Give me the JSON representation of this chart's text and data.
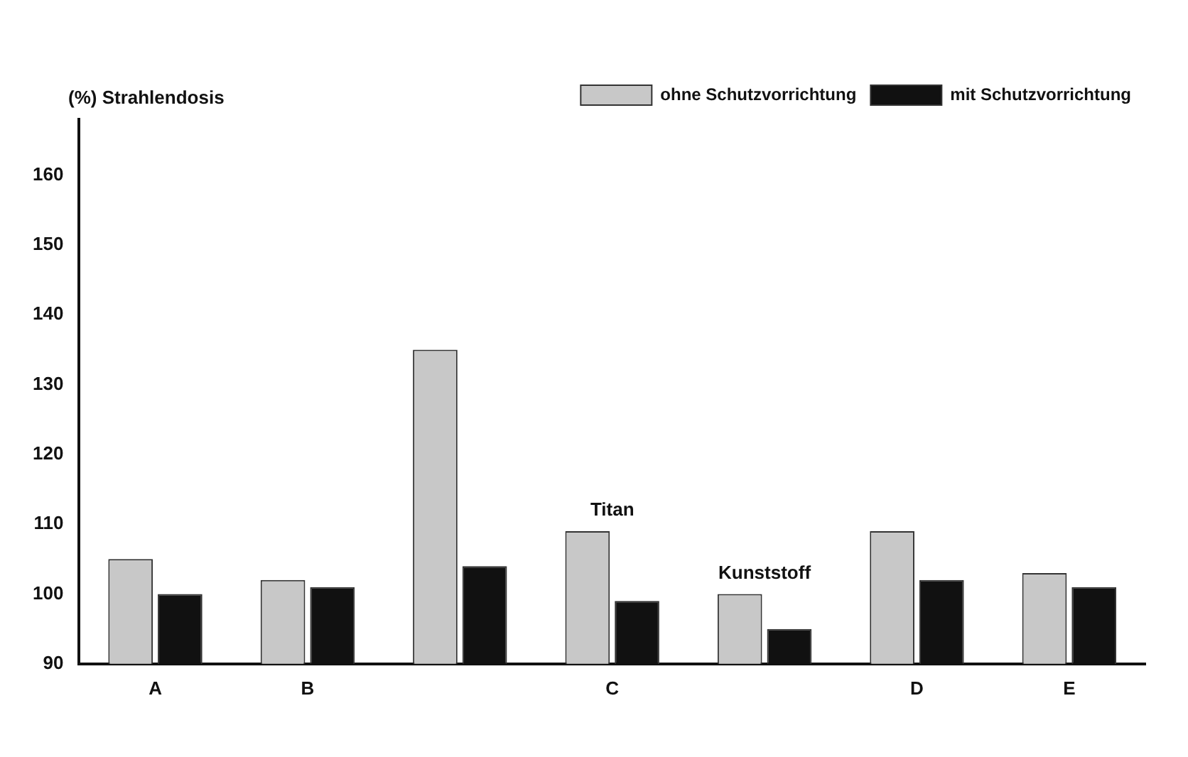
{
  "chart_data": {
    "type": "bar",
    "ylabel": "(%) Strahlendosis",
    "categories": [
      "A",
      "B",
      null,
      "C",
      null,
      "D",
      "E"
    ],
    "series": [
      {
        "name": "ohne Schutzvorrichtung",
        "color": "#c8c8c8",
        "values": [
          105,
          102,
          135,
          109,
          100,
          109,
          103
        ]
      },
      {
        "name": "mit Schutzvorrichtung",
        "color": "#111111",
        "values": [
          100,
          101,
          104,
          99,
          95,
          102,
          101
        ]
      }
    ],
    "ylim": [
      90,
      168
    ],
    "yticks": [
      90,
      100,
      110,
      120,
      130,
      140,
      150,
      160
    ],
    "grid": false,
    "legend": "top right",
    "annotations": [
      {
        "text": "Titan",
        "x": "C",
        "y": 109
      },
      {
        "text": "Kunststoff",
        "y": 100
      }
    ]
  }
}
